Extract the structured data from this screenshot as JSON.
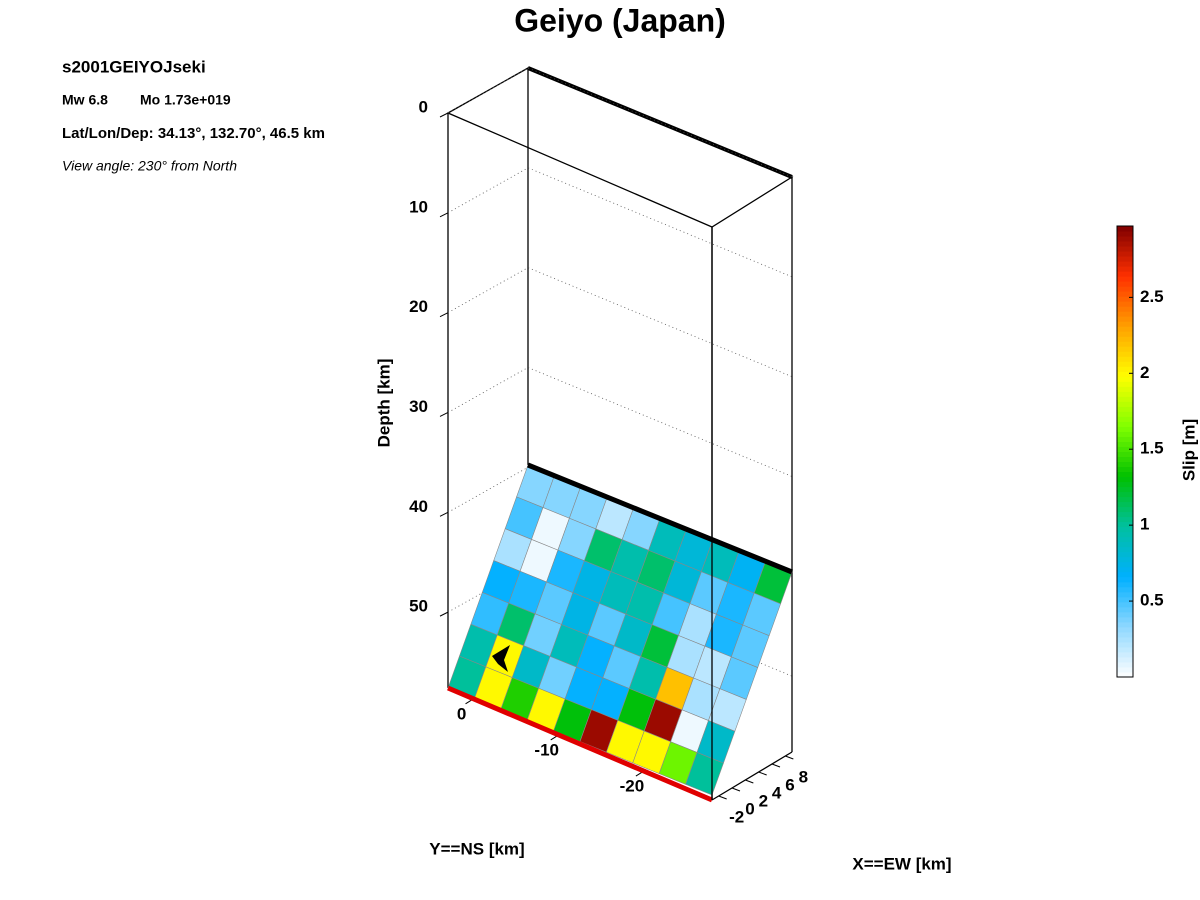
{
  "chart_data": {
    "type": "fault-slip",
    "title": "Geiyo (Japan)",
    "event": "s2001GEIYOJseki",
    "magnitude": "Mw 6.8",
    "moment": "Mo 1.73e+019",
    "location": "Lat/Lon/Dep: 34.13°, 132.70°, 46.5 km",
    "view": "View angle: 230° from North",
    "xlabel": "X==EW [km]",
    "ylabel": "Y==NS [km]",
    "zlabel": "Depth [km]",
    "colorbar_label": "Slip [m]",
    "xlim": [
      -3,
      9
    ],
    "xticks": [
      -2,
      0,
      2,
      4,
      6,
      8
    ],
    "ylim": [
      3,
      -28
    ],
    "yticks": [
      0,
      -10,
      -20
    ],
    "zlim": [
      0,
      57.6
    ],
    "zticks": [
      0,
      10,
      20,
      30,
      40,
      50
    ],
    "clim": [
      0,
      2.97
    ],
    "cticks": [
      0.5,
      1,
      1.5,
      2,
      2.5
    ],
    "colormap": [
      "#ffffff",
      "#8fd8ff",
      "#00b0ff",
      "#00c0a0",
      "#00c000",
      "#80ff00",
      "#ffff00",
      "#ffa000",
      "#ff3000",
      "#800000"
    ],
    "grid": true,
    "slip": [
      [
        0.35,
        0.35,
        0.35,
        0.2,
        0.35,
        0.9,
        0.8,
        0.9,
        0.7,
        1.2
      ],
      [
        0.5,
        0.05,
        0.35,
        1.1,
        0.95,
        1.1,
        0.8,
        0.45,
        0.6,
        0.45
      ],
      [
        0.25,
        0.05,
        0.6,
        0.75,
        0.9,
        0.95,
        0.5,
        0.25,
        0.6,
        0.45
      ],
      [
        0.65,
        0.6,
        0.45,
        0.75,
        0.45,
        0.85,
        1.2,
        0.25,
        0.2,
        0.45
      ],
      [
        0.55,
        1.1,
        0.4,
        0.9,
        0.65,
        0.45,
        0.95,
        2.2,
        0.25,
        0.2
      ],
      [
        0.95,
        2.0,
        0.85,
        0.4,
        0.65,
        0.65,
        1.3,
        2.9,
        0.05,
        0.85
      ],
      [
        1.0,
        2.0,
        1.4,
        2.0,
        1.3,
        2.9,
        2.0,
        2.0,
        1.6,
        1.0
      ]
    ]
  }
}
